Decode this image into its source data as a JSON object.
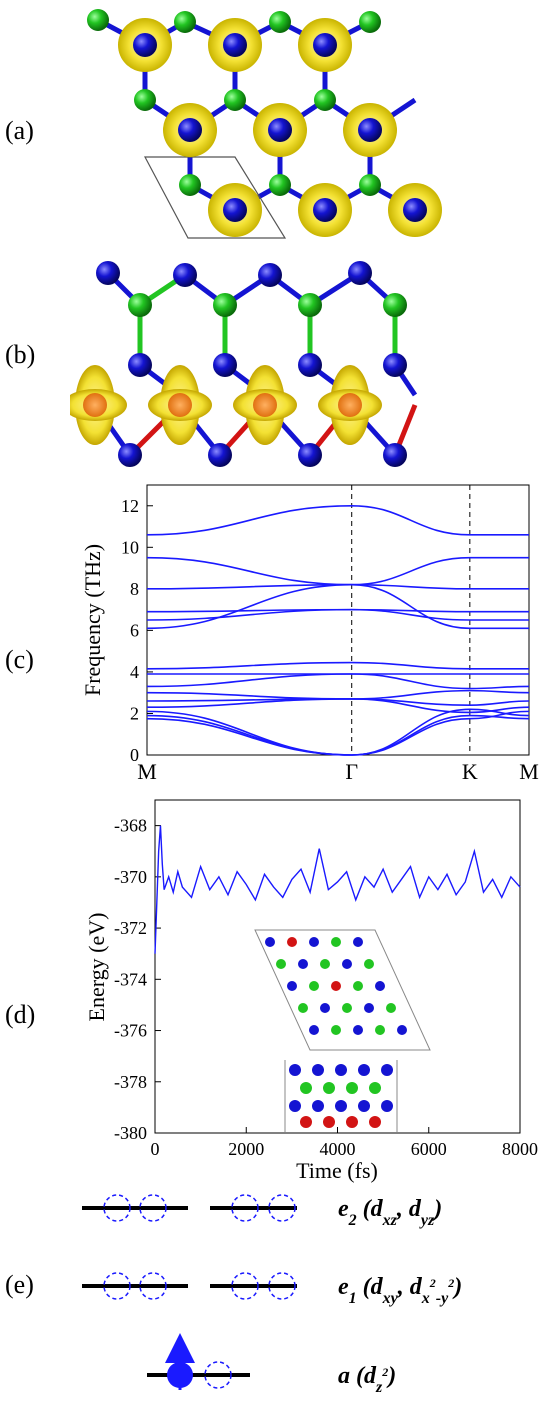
{
  "panels": {
    "a": {
      "label": "(a)"
    },
    "b": {
      "label": "(b)"
    },
    "c": {
      "label": "(c)"
    },
    "d": {
      "label": "(d)"
    },
    "e": {
      "label": "(e)"
    }
  },
  "colors": {
    "green_atom": "#22c522",
    "blue_atom": "#1414d2",
    "red_atom": "#d21414",
    "isosurface": "#f3e133",
    "orange_core": "#f08a1e",
    "band_line": "#1a1aff"
  },
  "chart_data": [
    {
      "type": "line",
      "title": "",
      "ylabel": "Frequency (THz)",
      "xlabel": "",
      "ylim": [
        0,
        13
      ],
      "yticks": [
        0,
        2,
        4,
        6,
        8,
        10,
        12
      ],
      "xticks": [
        "M",
        "Γ",
        "K",
        "M"
      ],
      "x": [
        0,
        1,
        1.577,
        1.866
      ],
      "series": [
        {
          "values": [
            1.75,
            0.0,
            1.9,
            1.75
          ]
        },
        {
          "values": [
            1.9,
            0.0,
            2.2,
            1.9
          ]
        },
        {
          "values": [
            2.1,
            0.0,
            1.75,
            2.1
          ]
        },
        {
          "values": [
            2.3,
            2.7,
            2.05,
            2.3
          ]
        },
        {
          "values": [
            2.6,
            2.7,
            2.4,
            2.6
          ]
        },
        {
          "values": [
            3.0,
            2.7,
            3.1,
            3.0
          ]
        },
        {
          "values": [
            3.3,
            3.9,
            3.2,
            3.3
          ]
        },
        {
          "values": [
            3.9,
            3.9,
            3.9,
            3.9
          ]
        },
        {
          "values": [
            4.15,
            4.45,
            4.15,
            4.15
          ]
        },
        {
          "values": [
            6.1,
            8.2,
            6.1,
            6.1
          ]
        },
        {
          "values": [
            6.5,
            7.0,
            6.5,
            6.5
          ]
        },
        {
          "values": [
            6.9,
            7.0,
            6.9,
            6.9
          ]
        },
        {
          "values": [
            8.0,
            8.2,
            8.0,
            8.0
          ]
        },
        {
          "values": [
            9.5,
            8.2,
            9.5,
            9.5
          ]
        },
        {
          "values": [
            10.6,
            12.0,
            10.6,
            10.6
          ]
        }
      ],
      "reference_line": 0
    },
    {
      "type": "line",
      "title": "",
      "ylabel": "Energy (eV)",
      "xlabel": "Time (fs)",
      "xlim": [
        0,
        8000
      ],
      "ylim": [
        -380,
        -367
      ],
      "xticks": [
        0,
        2000,
        4000,
        6000,
        8000
      ],
      "yticks": [
        -368,
        -370,
        -372,
        -374,
        -376,
        -378,
        -380
      ],
      "series": [
        {
          "x": [
            0,
            40,
            80,
            120,
            160,
            200,
            300,
            400,
            500,
            600,
            800,
            1000,
            1200,
            1400,
            1600,
            1800,
            2000,
            2200,
            2400,
            2600,
            2800,
            3000,
            3200,
            3400,
            3600,
            3800,
            4000,
            4200,
            4400,
            4600,
            4800,
            5000,
            5200,
            5400,
            5600,
            5800,
            6000,
            6200,
            6400,
            6600,
            6800,
            7000,
            7200,
            7400,
            7600,
            7800,
            8000
          ],
          "values": [
            -373.0,
            -371.0,
            -369.0,
            -368.0,
            -369.5,
            -370.5,
            -370.0,
            -370.6,
            -369.8,
            -370.4,
            -370.8,
            -369.6,
            -370.5,
            -370.0,
            -370.7,
            -369.8,
            -370.3,
            -370.9,
            -369.9,
            -370.4,
            -370.8,
            -370.1,
            -369.7,
            -370.6,
            -368.9,
            -370.5,
            -370.2,
            -369.8,
            -370.9,
            -370.0,
            -370.4,
            -369.7,
            -370.6,
            -370.1,
            -369.6,
            -370.8,
            -370.0,
            -370.5,
            -369.9,
            -370.7,
            -370.2,
            -369.0,
            -370.6,
            -370.1,
            -370.8,
            -370.0,
            -370.4
          ]
        }
      ]
    }
  ],
  "orbitals": {
    "e2": {
      "name": "e",
      "sub": "2",
      "paren_open": " (",
      "d1": "d",
      "d1_sub": "xz",
      "comma": ", ",
      "d2": "d",
      "d2_sub": "yz",
      "paren_close": ")"
    },
    "e1": {
      "name": "e",
      "sub": "1",
      "paren_open": " (",
      "d1": "d",
      "d1_sub": "xy",
      "comma": ", ",
      "d2": "d",
      "d2_sub": "x",
      "d2_sup1": "2",
      "d2_mid": "-y",
      "d2_sup2": "2",
      "paren_close": ")"
    },
    "a": {
      "name": "a",
      "paren_open": " (",
      "d1": "d",
      "d1_sub": "z",
      "d1_sup": "2",
      "paren_close": ")"
    }
  }
}
